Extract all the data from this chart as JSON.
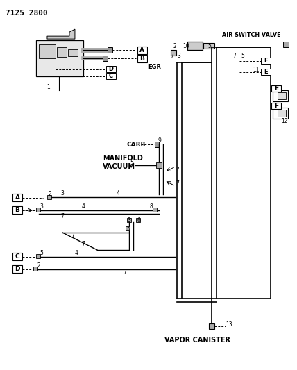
{
  "title": "7125 2800",
  "bg_color": "#ffffff",
  "lc": "#000000",
  "labels": {
    "air_switch_valve": "AIR SWITCH VALVE",
    "egr": "EGR",
    "carb": "CARB",
    "manifold_vacuum_line1": "MANIFOLD",
    "manifold_vacuum_line2": "VACUUM",
    "vapor_canister": "VAPOR CANISTER",
    "title": "7125 2800"
  }
}
